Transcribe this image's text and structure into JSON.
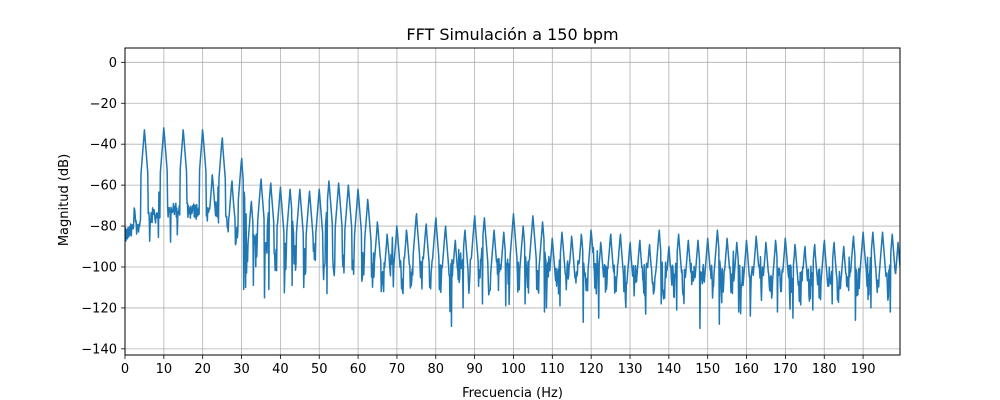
{
  "chart_data": {
    "type": "line",
    "title": "FFT Simulación a 150 bpm",
    "xlabel": "Frecuencia (Hz)",
    "ylabel": "Magnitud (dB)",
    "xlim": [
      0,
      199.5
    ],
    "ylim": [
      -143,
      7
    ],
    "x_ticks": [
      0,
      10,
      20,
      30,
      40,
      50,
      60,
      70,
      80,
      90,
      100,
      110,
      120,
      130,
      140,
      150,
      160,
      170,
      180,
      190
    ],
    "x_tick_labels": [
      "0",
      "10",
      "20",
      "30",
      "40",
      "50",
      "60",
      "70",
      "80",
      "90",
      "100",
      "110",
      "120",
      "130",
      "140",
      "150",
      "160",
      "170",
      "180",
      "190"
    ],
    "y_ticks": [
      0,
      -20,
      -40,
      -60,
      -80,
      -100,
      -120,
      -140
    ],
    "y_tick_labels": [
      "0",
      "−20",
      "−40",
      "−60",
      "−80",
      "−100",
      "−120",
      "−140"
    ],
    "grid": true,
    "color": "#1f77b4",
    "series": [
      {
        "x_start": 0,
        "x_end": 199.5,
        "harmonic_spacing_hz": 2.5,
        "peaks": [
          [
            2.5,
            -72
          ],
          [
            5,
            -33
          ],
          [
            7.5,
            -72
          ],
          [
            10,
            -32
          ],
          [
            12.5,
            -69
          ],
          [
            15,
            -33
          ],
          [
            17.5,
            -70
          ],
          [
            20,
            -33
          ],
          [
            22.5,
            -55
          ],
          [
            25,
            -37
          ],
          [
            27.5,
            -58
          ],
          [
            30,
            -47
          ],
          [
            32.5,
            -68
          ],
          [
            35,
            -57
          ],
          [
            37.5,
            -59
          ],
          [
            40,
            -61
          ],
          [
            42.5,
            -62
          ],
          [
            45,
            -62
          ],
          [
            47.5,
            -63
          ],
          [
            50,
            -62
          ],
          [
            52.5,
            -58
          ],
          [
            55,
            -59
          ],
          [
            57.5,
            -60
          ],
          [
            60,
            -62
          ],
          [
            62.5,
            -67
          ],
          [
            65,
            -78
          ],
          [
            67.5,
            -84
          ],
          [
            70,
            -80
          ],
          [
            72.5,
            -82
          ],
          [
            75,
            -74
          ],
          [
            77.5,
            -79
          ],
          [
            80,
            -76
          ],
          [
            82.5,
            -80
          ],
          [
            85,
            -87
          ],
          [
            87.5,
            -82
          ],
          [
            90,
            -75
          ],
          [
            92.5,
            -76
          ],
          [
            95,
            -82
          ],
          [
            97.5,
            -83
          ],
          [
            100,
            -74
          ],
          [
            102.5,
            -80
          ],
          [
            105,
            -75
          ],
          [
            107.5,
            -78
          ],
          [
            110,
            -86
          ],
          [
            112.5,
            -83
          ],
          [
            115,
            -85
          ],
          [
            117.5,
            -84
          ],
          [
            120,
            -82
          ],
          [
            122.5,
            -88
          ],
          [
            125,
            -84
          ],
          [
            127.5,
            -84
          ],
          [
            130,
            -88
          ],
          [
            132.5,
            -87
          ],
          [
            135,
            -89
          ],
          [
            137.5,
            -82
          ],
          [
            140,
            -90
          ],
          [
            142.5,
            -84
          ],
          [
            145,
            -87
          ],
          [
            147.5,
            -87
          ],
          [
            150,
            -86
          ],
          [
            152.5,
            -82
          ],
          [
            155,
            -86
          ],
          [
            157.5,
            -88
          ],
          [
            160,
            -87
          ],
          [
            162.5,
            -85
          ],
          [
            165,
            -88
          ],
          [
            167.5,
            -87
          ],
          [
            170,
            -86
          ],
          [
            172.5,
            -89
          ],
          [
            175,
            -90
          ],
          [
            177.5,
            -89
          ],
          [
            180,
            -87
          ],
          [
            182.5,
            -88
          ],
          [
            185,
            -90
          ],
          [
            187.5,
            -85
          ],
          [
            190,
            -83
          ],
          [
            192.5,
            -83
          ],
          [
            195,
            -83
          ],
          [
            197.5,
            -84
          ],
          [
            199,
            -88
          ]
        ],
        "noise_floor": [
          [
            0,
            -85
          ],
          [
            2,
            -82
          ],
          [
            4,
            -78
          ],
          [
            5,
            -76
          ],
          [
            7,
            -75
          ],
          [
            10,
            -74
          ],
          [
            15,
            -72
          ],
          [
            20,
            -73
          ],
          [
            25,
            -76
          ],
          [
            30,
            -88
          ],
          [
            35,
            -93
          ],
          [
            40,
            -94
          ],
          [
            45,
            -95
          ],
          [
            50,
            -97
          ],
          [
            55,
            -99
          ],
          [
            60,
            -100
          ],
          [
            70,
            -103
          ],
          [
            80,
            -104
          ],
          [
            100,
            -105
          ],
          [
            120,
            -106
          ],
          [
            150,
            -107
          ],
          [
            175,
            -108
          ],
          [
            199.5,
            -109
          ]
        ],
        "deep_dips": [
          [
            30.5,
            -111
          ],
          [
            31,
            -110
          ],
          [
            33,
            -109
          ],
          [
            37,
            -111
          ],
          [
            43,
            -109
          ],
          [
            46,
            -110
          ],
          [
            52,
            -113
          ],
          [
            60,
            -108
          ],
          [
            70,
            -112
          ],
          [
            75,
            -114
          ],
          [
            80,
            -116
          ],
          [
            84,
            -129
          ],
          [
            87,
            -120
          ],
          [
            92,
            -118
          ],
          [
            95,
            -122
          ],
          [
            98,
            -119
          ],
          [
            100,
            -124
          ],
          [
            103,
            -118
          ],
          [
            108,
            -122
          ],
          [
            112,
            -119
          ],
          [
            115,
            -120
          ],
          [
            118,
            -127
          ],
          [
            120,
            -123
          ],
          [
            122,
            -125
          ],
          [
            125,
            -122
          ],
          [
            130,
            -121
          ],
          [
            134,
            -123
          ],
          [
            138,
            -118
          ],
          [
            142,
            -121
          ],
          [
            145,
            -126
          ],
          [
            148,
            -130
          ],
          [
            150,
            -125
          ],
          [
            153,
            -128
          ],
          [
            155,
            -121
          ],
          [
            158,
            -122
          ],
          [
            161,
            -124
          ],
          [
            165,
            -118
          ],
          [
            168,
            -122
          ],
          [
            172,
            -125
          ],
          [
            175,
            -136
          ],
          [
            177,
            -121
          ],
          [
            180,
            -124
          ],
          [
            182,
            -118
          ],
          [
            185,
            -121
          ],
          [
            188,
            -126
          ],
          [
            192,
            -120
          ],
          [
            195,
            -132
          ],
          [
            197,
            -122
          ],
          [
            199,
            -115
          ]
        ]
      }
    ]
  }
}
